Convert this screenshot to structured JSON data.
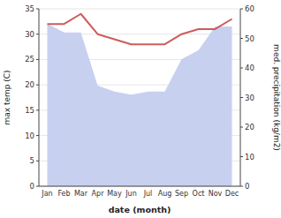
{
  "chart_data": {
    "type": "line",
    "xlabel": "date (month)",
    "ylabel": "max temp (C)",
    "y2label": "med. precipitation (kg/m2)",
    "categories": [
      "Jan",
      "Feb",
      "Mar",
      "Apr",
      "May",
      "Jun",
      "Jul",
      "Aug",
      "Sep",
      "Oct",
      "Nov",
      "Dec"
    ],
    "series": [
      {
        "type": "area",
        "axis": "y2",
        "color": "#c8d0f0",
        "values": [
          55,
          52,
          52,
          34,
          32,
          31,
          32,
          32,
          43,
          46,
          54,
          54
        ]
      },
      {
        "type": "line",
        "color": "#cd5c5c",
        "values": [
          32,
          32,
          34,
          30,
          29,
          28,
          28,
          28,
          30,
          31,
          31,
          33
        ]
      }
    ],
    "ylim": [
      0,
      35
    ],
    "yticks": [
      0,
      5,
      10,
      15,
      20,
      25,
      30,
      35
    ],
    "y2lim": [
      0,
      60
    ],
    "y2ticks": [
      0,
      10,
      20,
      30,
      40,
      50,
      60
    ],
    "grid": true
  }
}
